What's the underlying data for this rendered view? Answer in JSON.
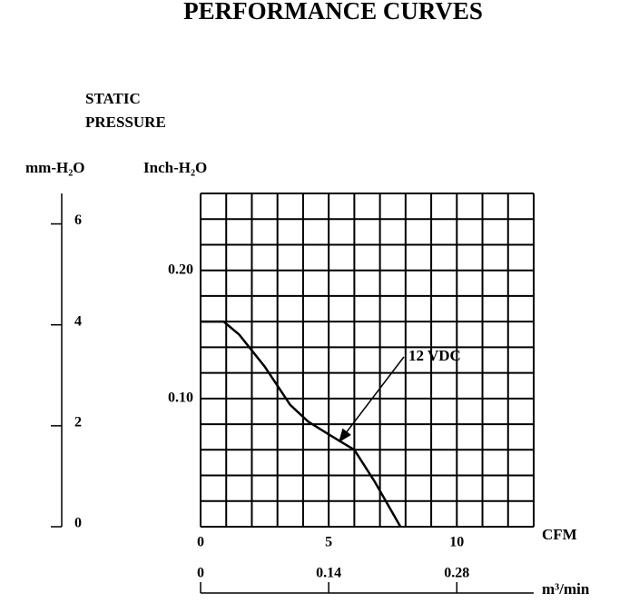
{
  "chart_data": {
    "type": "line",
    "title": "PERFORMANCE CURVES",
    "ylabel": "STATIC PRESSURE",
    "y2_unit": "mm-H₂O",
    "y_unit": "Inch-H₂O",
    "xlabel": "CFM",
    "x2label": "m³/min",
    "series": [
      {
        "name": "12 VDC",
        "color": "#000000",
        "x": [
          0,
          0.9,
          1.5,
          2.5,
          3.5,
          4.2,
          5,
          6,
          6.8,
          7.8
        ],
        "values": [
          0.16,
          0.16,
          0.15,
          0.125,
          0.095,
          0.082,
          0.072,
          0.06,
          0.035,
          0
        ]
      }
    ],
    "xlim": [
      0,
      13
    ],
    "xticks": [
      0,
      5,
      10
    ],
    "x_minor_ticks": [
      0,
      1,
      2,
      3,
      4,
      5,
      6,
      7,
      8,
      9,
      10,
      11,
      12,
      13
    ],
    "ylim": [
      0,
      0.26
    ],
    "yticks": [
      {
        "value": 0.1,
        "label": "0.10"
      },
      {
        "value": 0.2,
        "label": "0.20"
      }
    ],
    "y_minor_ticks": [
      0,
      0.02,
      0.04,
      0.06,
      0.08,
      0.1,
      0.12,
      0.14,
      0.16,
      0.18,
      0.2,
      0.22,
      0.24,
      0.26
    ],
    "y2lim": [
      0,
      6.604
    ],
    "y2ticks": [
      0,
      2,
      4,
      6
    ],
    "x2lim": [
      0,
      0.364
    ],
    "x2ticks": [
      0,
      0.14,
      0.28
    ],
    "grid": true
  }
}
